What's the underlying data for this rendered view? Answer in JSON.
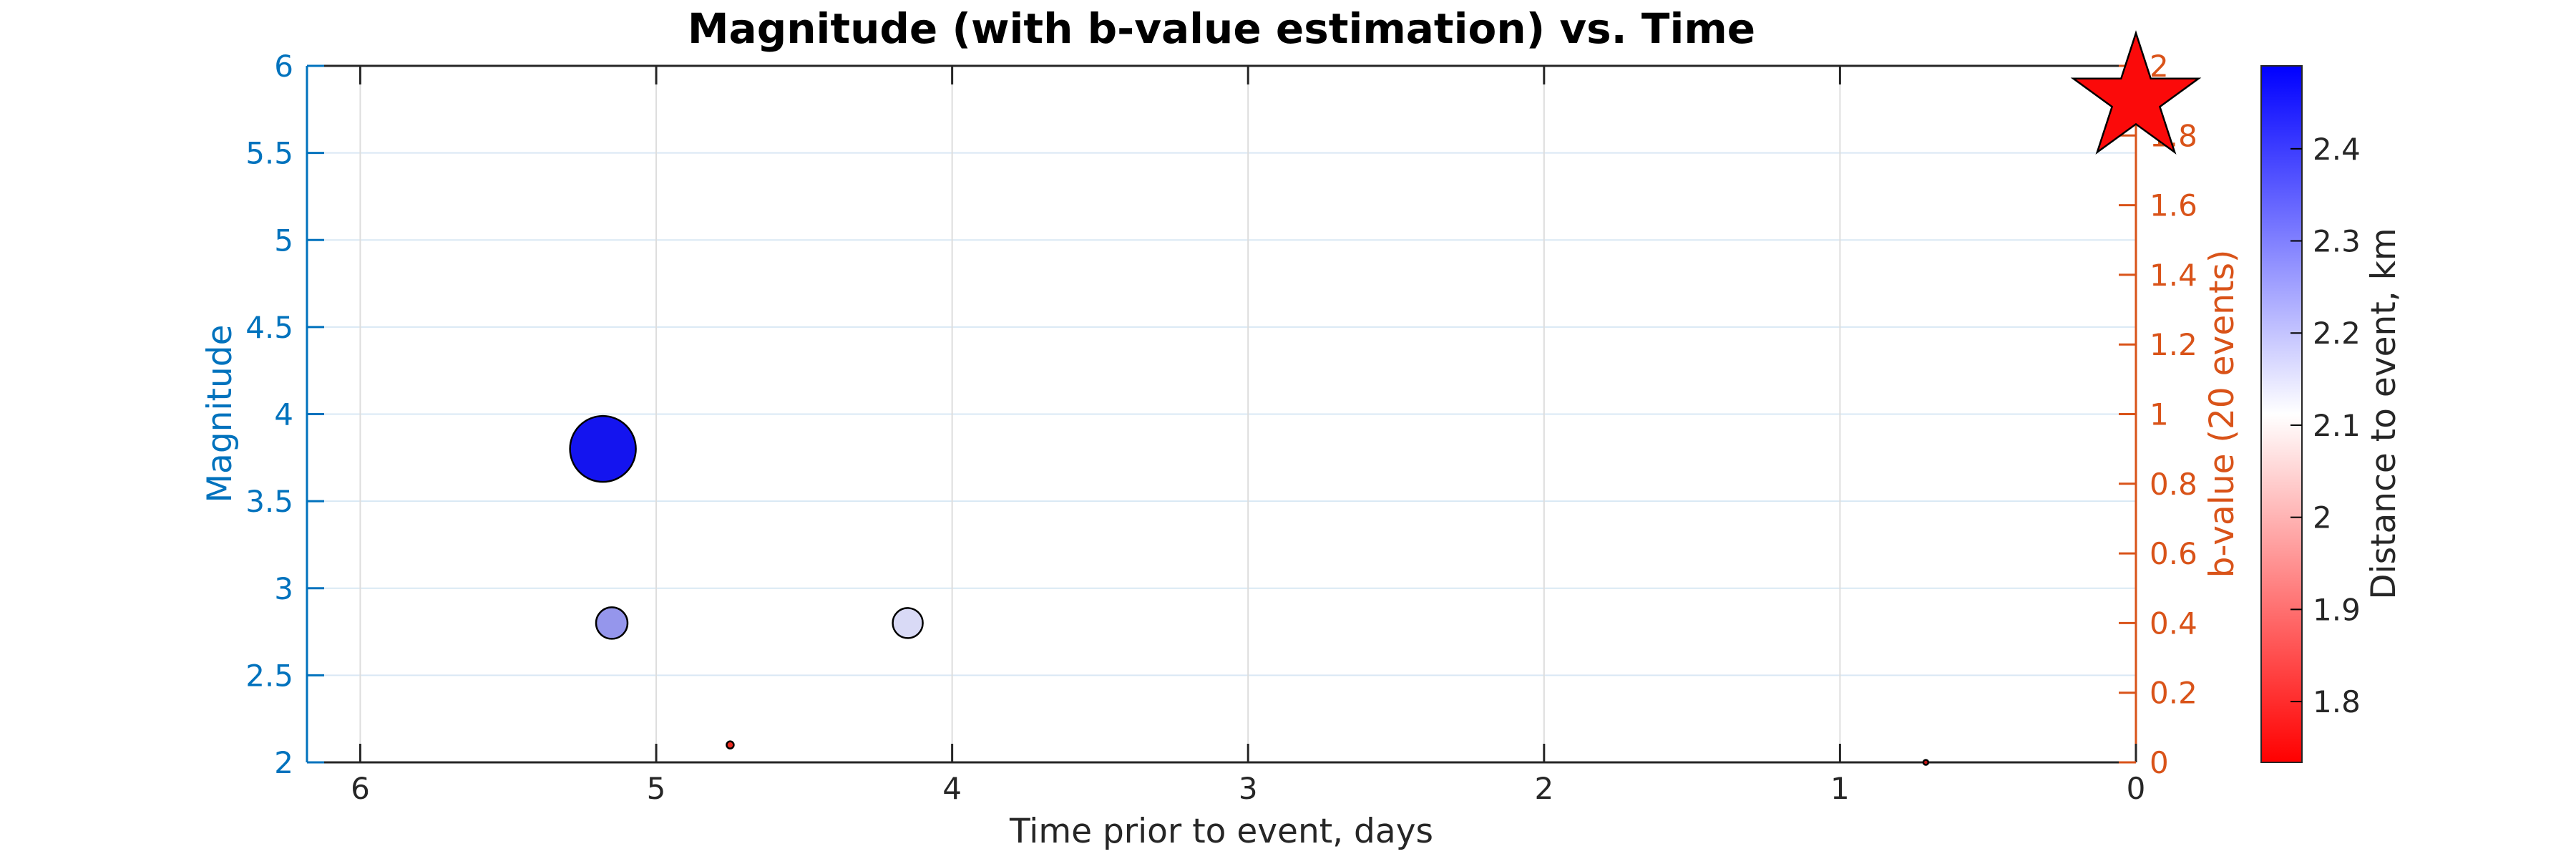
{
  "figure": {
    "background": "#ffffff"
  },
  "chart_data": {
    "type": "scatter",
    "title": "Magnitude (with b-value estimation) vs. Time",
    "x_axis": {
      "label": "Time prior to event, days",
      "tick_labels": [
        "6",
        "5",
        "4",
        "3",
        "2",
        "1",
        "0"
      ],
      "range_days": [
        0,
        6.18
      ],
      "reversed": true,
      "color": "#262626"
    },
    "y_axis_left": {
      "label": "Magnitude",
      "tick_labels": [
        "6",
        "5.5",
        "5",
        "4.5",
        "4",
        "3.5",
        "3",
        "2.5",
        "2"
      ],
      "range": [
        2,
        6
      ],
      "color": "#0072BD"
    },
    "y_axis_right": {
      "label": "b-value (20 events)",
      "tick_labels": [
        "2",
        "1.8",
        "1.6",
        "1.4",
        "1.2",
        "1",
        "0.8",
        "0.6",
        "0.4",
        "0.2",
        "0"
      ],
      "range": [
        0,
        2
      ],
      "color": "#D95319"
    },
    "colorbar": {
      "label": "Distance to event, km",
      "tick_labels": [
        "2.4",
        "2.3",
        "2.2",
        "2.1",
        "2",
        "1.9",
        "1.8"
      ],
      "range": [
        1.734,
        2.49
      ],
      "color_low": "#ff0000",
      "color_mid": "#ffffff",
      "color_high": "#0000ff",
      "border_color": "#262626",
      "label_color": "#262626"
    },
    "grid": {
      "show": true,
      "horizontal_color": "#d9e8f4",
      "vertical_color": "#dddddd"
    },
    "points": [
      {
        "time_days": 5.18,
        "magnitude": 3.8,
        "distance_km": 2.46,
        "marker_radius_px": 46,
        "fill": "#1414EF"
      },
      {
        "time_days": 5.15,
        "magnitude": 2.8,
        "distance_km": 2.27,
        "marker_radius_px": 22,
        "fill": "#9596EC"
      },
      {
        "time_days": 4.15,
        "magnitude": 2.8,
        "distance_km": 2.17,
        "marker_radius_px": 21,
        "fill": "#D9DAF6"
      },
      {
        "time_days": 4.75,
        "magnitude": 2.1,
        "distance_km": 1.79,
        "marker_radius_px": 5,
        "fill": "#EE2D22"
      },
      {
        "time_days": 0.71,
        "magnitude": 2.0,
        "distance_km": 1.76,
        "marker_radius_px": 3.5,
        "fill": "#C41414"
      }
    ],
    "event_marker": {
      "shape": "star",
      "time_days": 0,
      "magnitude": 5.81,
      "outer_radius_px": 92,
      "inner_ratio": 0.382,
      "fill": "#FB0A0A",
      "stroke": "#000000"
    },
    "spines": {
      "left_color": "#0072BD",
      "right_color": "#D95319",
      "top_color": "#262626",
      "bottom_color": "#262626"
    }
  }
}
